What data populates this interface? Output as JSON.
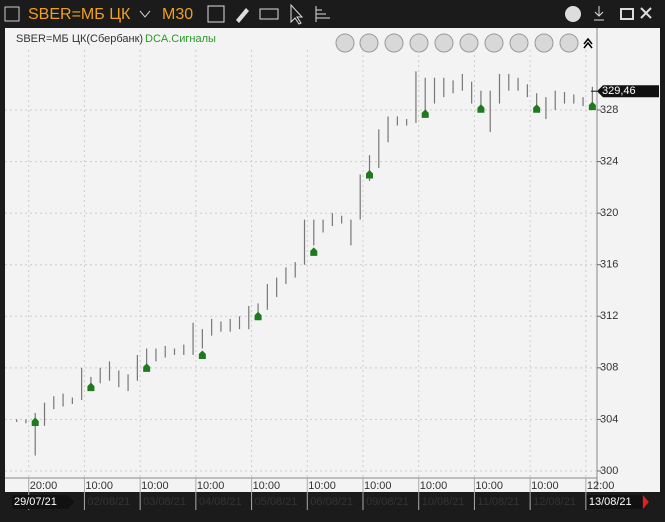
{
  "header": {
    "symbol": "SBER=МБ ЦК",
    "timeframe": "M30"
  },
  "chart_data": {
    "type": "ohlc",
    "legend": {
      "instrument": "SBER=МБ ЦК(Сбербанк)",
      "indicator": "DCA.Сигналы"
    },
    "bars": [
      [
        303.8,
        304.0
      ],
      [
        303.7,
        304.0
      ],
      [
        301.2,
        304.5
      ],
      [
        303.5,
        305.3
      ],
      [
        304.8,
        305.8
      ],
      [
        305.0,
        306.0
      ],
      [
        305.2,
        305.7
      ],
      [
        305.5,
        308.0
      ],
      [
        306.2,
        307.3
      ],
      [
        306.8,
        308.0
      ],
      [
        307.0,
        308.5
      ],
      [
        306.5,
        307.8
      ],
      [
        306.2,
        307.5
      ],
      [
        307.0,
        309.0
      ],
      [
        308.0,
        309.5
      ],
      [
        308.5,
        309.5
      ],
      [
        308.8,
        309.7
      ],
      [
        309.0,
        309.5
      ],
      [
        309.0,
        309.8
      ],
      [
        309.0,
        311.5
      ],
      [
        309.5,
        311.0
      ],
      [
        310.5,
        311.8
      ],
      [
        310.8,
        311.6
      ],
      [
        310.8,
        311.8
      ],
      [
        311.0,
        312.0
      ],
      [
        311.0,
        312.8
      ],
      [
        312.0,
        313.0
      ],
      [
        312.5,
        314.5
      ],
      [
        313.5,
        315.0
      ],
      [
        314.5,
        315.8
      ],
      [
        315.0,
        316.2
      ],
      [
        316.0,
        319.5
      ],
      [
        317.5,
        319.5
      ],
      [
        318.5,
        319.5
      ],
      [
        319.0,
        320.0
      ],
      [
        319.2,
        319.8
      ],
      [
        317.5,
        319.5
      ],
      [
        319.5,
        323.0
      ],
      [
        322.5,
        324.5
      ],
      [
        323.5,
        326.5
      ],
      [
        325.5,
        327.5
      ],
      [
        326.8,
        327.5
      ],
      [
        326.8,
        327.3
      ],
      [
        327.0,
        331.0
      ],
      [
        327.5,
        330.5
      ],
      [
        328.5,
        330.5
      ],
      [
        329.0,
        330.5
      ],
      [
        329.3,
        330.3
      ],
      [
        329.5,
        330.8
      ],
      [
        328.5,
        330.2
      ],
      [
        328.0,
        329.5
      ],
      [
        326.3,
        329.5
      ],
      [
        328.5,
        330.8
      ],
      [
        329.5,
        330.8
      ],
      [
        329.5,
        330.5
      ],
      [
        329.0,
        330.0
      ],
      [
        328.3,
        329.3
      ],
      [
        327.3,
        329.0
      ],
      [
        328.0,
        329.5
      ],
      [
        328.5,
        329.4
      ],
      [
        328.5,
        329.2
      ],
      [
        328.3,
        329.0
      ],
      [
        328.2,
        329.8
      ]
    ],
    "signals": {
      "x": [
        2,
        8,
        14,
        20,
        26,
        32,
        38,
        44,
        50,
        56,
        62
      ],
      "values": [
        303.8,
        306.5,
        308,
        309,
        312,
        317,
        323,
        327.7,
        328.1,
        328.1,
        328.3
      ],
      "color": "#1e7a1e"
    },
    "bar_color": "#777777",
    "last_price": {
      "value": 329.46,
      "label": "329,46"
    },
    "ylim": [
      299.3,
      332.5
    ],
    "yticks": [
      300,
      304,
      308,
      312,
      316,
      320,
      324,
      328
    ],
    "xlim": [
      -0.5,
      62.5
    ],
    "xticks": [
      {
        "value": 1.3,
        "label": "20:00"
      },
      {
        "value": 7.3,
        "label": "10:00"
      },
      {
        "value": 13.3,
        "label": "10:00"
      },
      {
        "value": 19.3,
        "label": "10:00"
      },
      {
        "value": 25.3,
        "label": "10:00"
      },
      {
        "value": 31.3,
        "label": "10:00"
      },
      {
        "value": 37.3,
        "label": "10:00"
      },
      {
        "value": 43.3,
        "label": "10:00"
      },
      {
        "value": 49.3,
        "label": "10:00"
      },
      {
        "value": 55.3,
        "label": "10:00"
      },
      {
        "value": 61.3,
        "label": "12:00"
      }
    ],
    "xdates": [
      "29/07/21",
      "02/08/21",
      "03/08/21",
      "04/08/21",
      "05/08/21",
      "06/08/21",
      "09/08/21",
      "10/08/21",
      "11/08/21",
      "12/08/21",
      "13/08/21"
    ],
    "grid": true
  }
}
